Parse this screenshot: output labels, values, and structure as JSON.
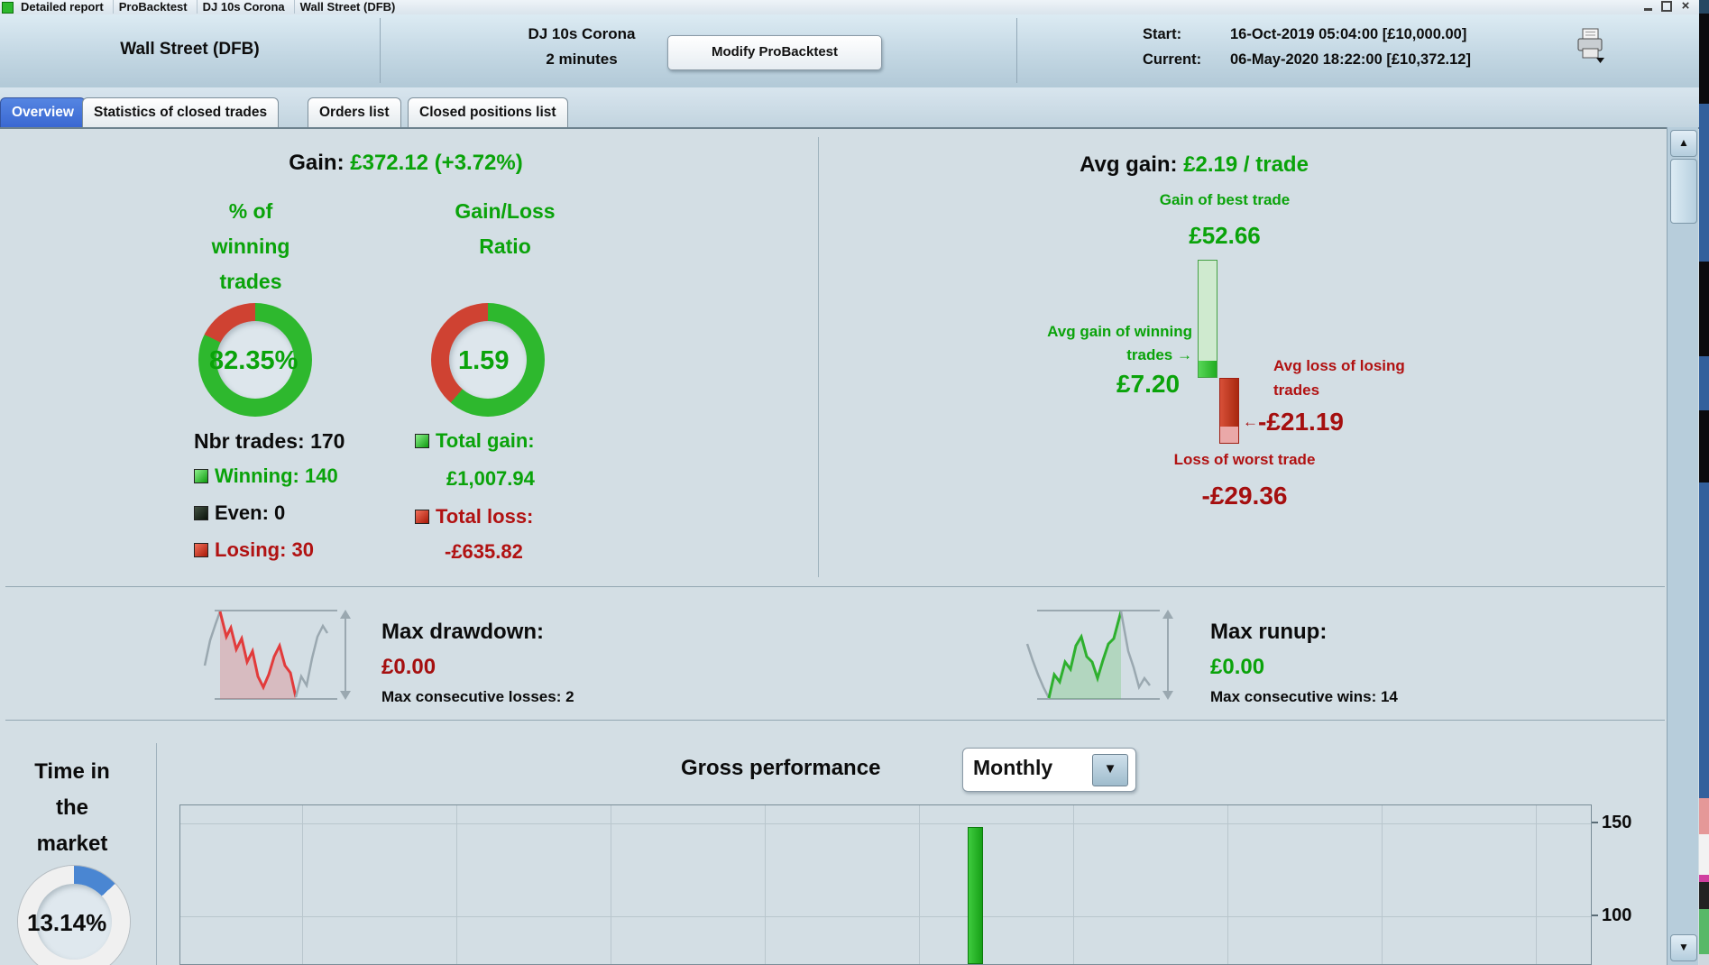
{
  "window": {
    "title_items": [
      "Detailed report",
      "ProBacktest",
      "DJ 10s Corona",
      "Wall Street (DFB)"
    ]
  },
  "header": {
    "instrument": "Wall Street (DFB)",
    "strategy": "DJ 10s Corona",
    "timeframe": "2 minutes",
    "modify_button": "Modify ProBacktest",
    "start_label": "Start:",
    "start_value": "16-Oct-2019 05:04:00 [£10,000.00]",
    "current_label": "Current:",
    "current_value": "06-May-2020 18:22:00 [£10,372.12]"
  },
  "tabs": [
    {
      "label": "Overview",
      "active": true
    },
    {
      "label": "Statistics of closed trades",
      "active": false
    },
    {
      "label": "Orders list",
      "active": false
    },
    {
      "label": "Closed positions list",
      "active": false
    }
  ],
  "overview": {
    "gain_label": "Gain:",
    "gain_value": "£372.12 (+3.72%)",
    "pct_title_lines": [
      "% of",
      "winning",
      "trades"
    ],
    "pct_value": "82.35%",
    "ratio_title_lines": [
      "Gain/Loss",
      "Ratio"
    ],
    "ratio_value": "1.59",
    "nbr_trades": "Nbr trades: 170",
    "winning": "Winning: 140",
    "even": "Even: 0",
    "losing": "Losing: 30",
    "total_gain_label": "Total gain:",
    "total_gain_value": "£1,007.94",
    "total_loss_label": "Total loss:",
    "total_loss_value": "-£635.82",
    "avg_gain_label": "Avg gain:",
    "avg_gain_value": "£2.19 / trade",
    "best_trade_label": "Gain of best trade",
    "best_trade_value": "£52.66",
    "avg_win_line1": "Avg gain of winning",
    "avg_win_line2": "trades",
    "avg_win_value": "£7.20",
    "avg_loss_line1": "Avg loss of losing",
    "avg_loss_line2": "trades",
    "avg_loss_value": "-£21.19",
    "worst_trade_label": "Loss of worst trade",
    "worst_trade_value": "-£29.36",
    "max_drawdown_label": "Max drawdown:",
    "max_drawdown_value": "£0.00",
    "max_consec_losses": "Max consecutive losses: 2",
    "max_runup_label": "Max runup:",
    "max_runup_value": "£0.00",
    "max_consec_wins": "Max consecutive wins: 14",
    "time_title_lines": [
      "Time in",
      "the",
      "market"
    ],
    "time_value": "13.14%"
  },
  "perf": {
    "title": "Gross performance",
    "period": "Monthly",
    "y_ticks": [
      "150",
      "100"
    ]
  },
  "colors": {
    "accent_tab": "#3f70d9",
    "green_text": "#0aa30a",
    "red_text": "#b11212",
    "donut_green": "#2eb82e",
    "donut_red": "#cf4232",
    "time_blue": "#4a86d2",
    "time_ring": "#f0f0f0",
    "perf_bar_green": "#2bbf2b"
  },
  "chart_data": [
    {
      "type": "pie",
      "title": "% of winning trades",
      "labels": [
        "winning",
        "losing"
      ],
      "values": [
        82.35,
        17.65
      ],
      "center_label": "82.35%",
      "colors": [
        "#2eb82e",
        "#cf4232"
      ]
    },
    {
      "type": "pie",
      "title": "Gain/Loss Ratio",
      "labels": [
        "gain share",
        "loss share"
      ],
      "values": [
        61.39,
        38.61
      ],
      "center_label": "1.59",
      "colors": [
        "#2eb82e",
        "#cf4232"
      ]
    },
    {
      "type": "bar",
      "title": "Trade extremes (GBP)",
      "categories": [
        "Gain of best trade",
        "Avg gain of winning trades",
        "Avg loss of losing trades",
        "Loss of worst trade"
      ],
      "values": [
        52.66,
        7.2,
        -21.19,
        -29.36
      ]
    },
    {
      "type": "pie",
      "title": "Time in the market",
      "labels": [
        "in market",
        "out of market"
      ],
      "values": [
        13.14,
        86.86
      ],
      "center_label": "13.14%",
      "colors": [
        "#4a86d2",
        "#f0f0f0"
      ]
    },
    {
      "type": "bar",
      "title": "Gross performance",
      "period": "Monthly",
      "ylabel_ticks": [
        150,
        100
      ],
      "ylim_visible": [
        88,
        163
      ],
      "grid": true,
      "visible_bars": [
        {
          "x_frac": 0.564,
          "value": 148,
          "color": "#2bbf2b"
        }
      ],
      "note": "chart area truncated at bottom edge of window"
    }
  ]
}
